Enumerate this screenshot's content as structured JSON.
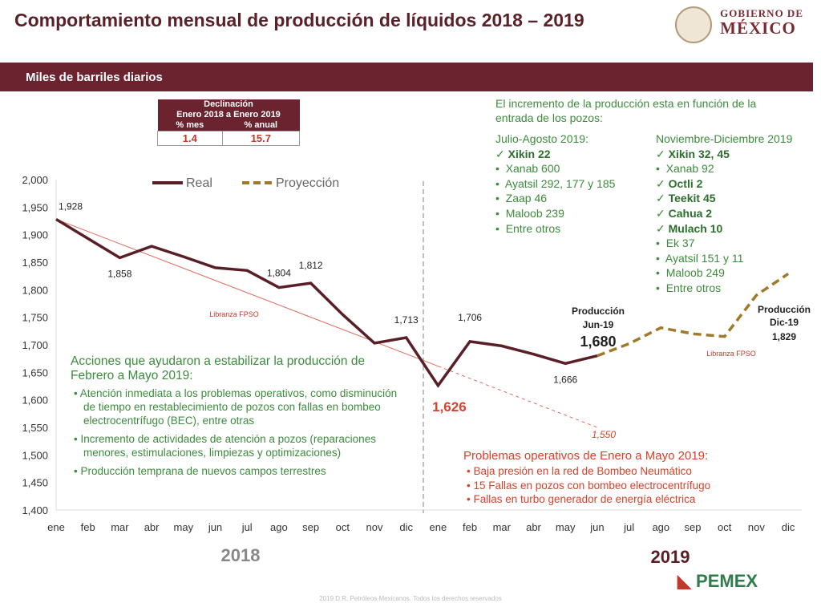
{
  "title": "Comportamiento mensual de producción de líquidos 2018 – 2019",
  "logo_gob": {
    "line1": "GOBIERNO DE",
    "line2": "MÉXICO"
  },
  "band_label": "Miles de barriles diarios",
  "decline_table": {
    "header1": "Declinación",
    "header2": "Enero 2018 a Enero 2019",
    "col1": "% mes",
    "col2": "% anual",
    "val1": "1.4",
    "val2": "15.7"
  },
  "wells": {
    "intro": "El incremento de la producción esta en función de la entrada de los pozos:",
    "group1": {
      "title": "Julio-Agosto 2019:",
      "items": [
        {
          "t": "Xikin 22",
          "check": true
        },
        {
          "t": "Xanab 600"
        },
        {
          "t": "Ayatsil 292, 177 y 185"
        },
        {
          "t": "Zaap 46"
        },
        {
          "t": "Maloob 239"
        },
        {
          "t": "Entre otros"
        }
      ]
    },
    "group2": {
      "title": "Noviembre-Diciembre 2019",
      "items": [
        {
          "t": "Xikin 32, 45",
          "check": true
        },
        {
          "t": "Xanab 92"
        },
        {
          "t": "Octli 2",
          "check": true
        },
        {
          "t": "Teekit 45",
          "check": true
        },
        {
          "t": "Cahua 2",
          "check": true
        },
        {
          "t": "Mulach 10",
          "check": true
        },
        {
          "t": "Ek 37"
        },
        {
          "t": "Ayatsil 151 y 11"
        },
        {
          "t": "Maloob 249"
        },
        {
          "t": "Entre otros"
        }
      ]
    }
  },
  "actions": {
    "title": "Acciones que ayudaron a estabilizar la producción de Febrero a Mayo 2019:",
    "items": [
      "Atención inmediata a los problemas operativos, como disminución de tiempo en restablecimiento de pozos con fallas en bombeo electrocentrífugo (BEC), entre otras",
      "Incremento de actividades de atención a pozos (reparaciones menores, estimulaciones, limpiezas y optimizaciones)",
      "Producción temprana de nuevos campos terrestres"
    ]
  },
  "problems": {
    "title": "Problemas operativos de Enero a Mayo 2019:",
    "items": [
      "Baja presión en la red de Bombeo Neumático",
      "15 Fallas en pozos con bombeo electrocentrífugo",
      "Fallas en turbo generador de energía eléctrica"
    ]
  },
  "footer": {
    "copyright": "2019 D.R. Petróleos Mexicanos. Todos los derechos reservados",
    "pemex": "PEMEX"
  },
  "chart_data": {
    "type": "line",
    "ylim": [
      1400,
      2000
    ],
    "yticks": [
      1400,
      1450,
      1500,
      1550,
      1600,
      1650,
      1700,
      1750,
      1800,
      1850,
      1900,
      1950,
      2000
    ],
    "categories": [
      "ene",
      "feb",
      "mar",
      "abr",
      "may",
      "jun",
      "jul",
      "ago",
      "sep",
      "oct",
      "nov",
      "dic",
      "ene",
      "feb",
      "mar",
      "abr",
      "may",
      "jun",
      "jul",
      "ago",
      "sep",
      "oct",
      "nov",
      "dic"
    ],
    "year_labels": [
      "2018",
      "2019"
    ],
    "series": [
      {
        "name": "Real",
        "color": "#5a1f26",
        "style": "solid",
        "values": [
          1928,
          1893,
          1858,
          1879,
          1860,
          1840,
          1835,
          1804,
          1812,
          1755,
          1703,
          1713,
          1626,
          1706,
          1698,
          1683,
          1666,
          1680,
          null,
          null,
          null,
          null,
          null,
          null
        ]
      },
      {
        "name": "Proyección",
        "color": "#a07a2a",
        "style": "dashed",
        "values": [
          null,
          null,
          null,
          null,
          null,
          null,
          null,
          null,
          null,
          null,
          null,
          null,
          null,
          null,
          null,
          null,
          null,
          1680,
          1702,
          1731,
          1720,
          1715,
          1790,
          1829
        ]
      }
    ],
    "trend": {
      "from": 1928,
      "to": 1550,
      "to_label": "1,550"
    },
    "data_labels": [
      {
        "i": 0,
        "t": "1,928"
      },
      {
        "i": 2,
        "t": "1,858"
      },
      {
        "i": 7,
        "t": "1,804"
      },
      {
        "i": 8,
        "t": "1,812"
      },
      {
        "i": 11,
        "t": "1,713"
      },
      {
        "i": 12,
        "t": "1,626"
      },
      {
        "i": 13,
        "t": "1,706"
      },
      {
        "i": 16,
        "t": "1,666"
      }
    ],
    "annotations": {
      "libranza1": "Libranza FPSO",
      "libranza2": "Libranza FPSO",
      "jun": [
        "Producción",
        "Jun-19",
        "1,680"
      ],
      "dic": [
        "Producción",
        "Dic-19",
        "1,829"
      ]
    }
  }
}
